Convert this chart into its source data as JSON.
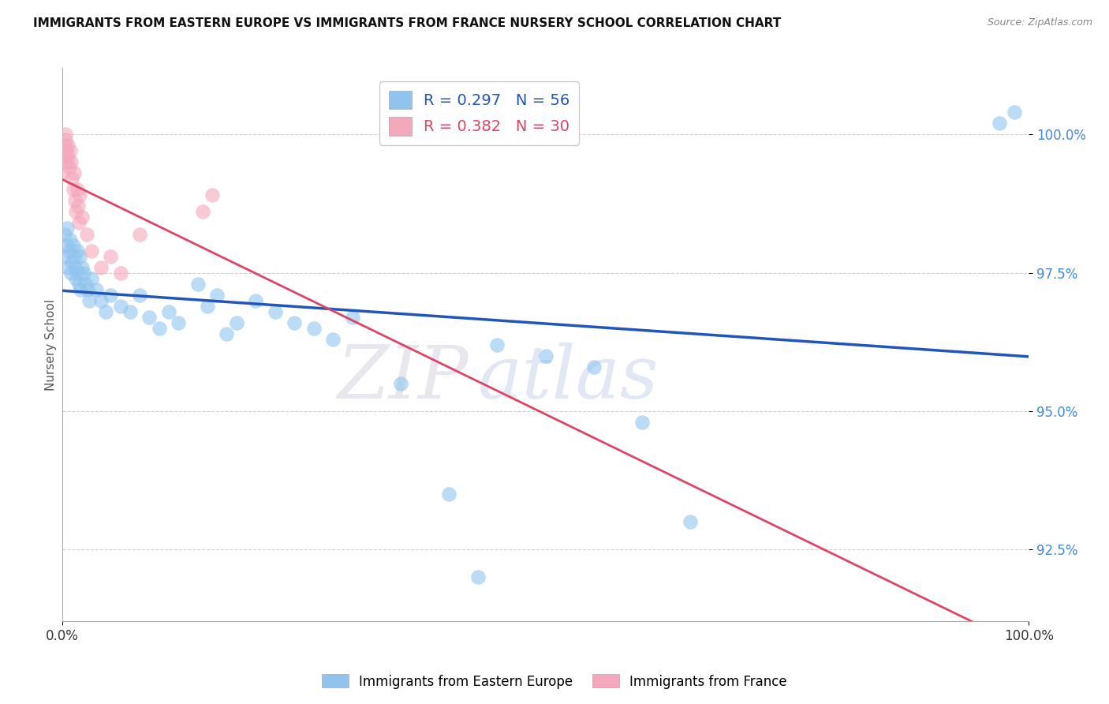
{
  "title": "IMMIGRANTS FROM EASTERN EUROPE VS IMMIGRANTS FROM FRANCE NURSERY SCHOOL CORRELATION CHART",
  "source_text": "Source: ZipAtlas.com",
  "ylabel": "Nursery School",
  "legend_label_blue": "Immigrants from Eastern Europe",
  "legend_label_pink": "Immigrants from France",
  "R_blue": 0.297,
  "N_blue": 56,
  "R_pink": 0.382,
  "N_pink": 30,
  "color_blue": "#90C4EE",
  "color_pink": "#F4A8BC",
  "color_line_blue": "#2255BB",
  "color_line_pink": "#DD4466",
  "xlim": [
    0,
    100
  ],
  "ylim": [
    91.2,
    101.2
  ],
  "yticks": [
    92.5,
    95.0,
    97.5,
    100.0
  ],
  "ytick_labels": [
    "92.5%",
    "95.0%",
    "97.5%",
    "100.0%"
  ],
  "xtick_labels": [
    "0.0%",
    "100.0%"
  ],
  "watermark_zip": "ZIP",
  "watermark_atlas": "atlas",
  "blue_x": [
    0.2,
    0.3,
    0.4,
    0.5,
    0.6,
    0.7,
    0.8,
    0.9,
    1.0,
    1.1,
    1.2,
    1.3,
    1.4,
    1.5,
    1.6,
    1.7,
    1.8,
    1.9,
    2.0,
    2.2,
    2.4,
    2.6,
    2.8,
    3.0,
    3.5,
    4.0,
    4.5,
    5.0,
    6.0,
    7.0,
    8.0,
    9.0,
    10.0,
    11.0,
    12.0,
    14.0,
    15.0,
    16.0,
    17.0,
    18.0,
    20.0,
    22.0,
    24.0,
    26.0,
    28.0,
    30.0,
    35.0,
    40.0,
    43.0,
    45.0,
    50.0,
    55.0,
    60.0,
    65.0,
    97.0,
    98.5
  ],
  "blue_y": [
    98.2,
    97.8,
    98.0,
    98.3,
    97.6,
    97.9,
    98.1,
    97.5,
    97.7,
    98.0,
    97.8,
    97.6,
    97.4,
    97.9,
    97.5,
    97.3,
    97.8,
    97.2,
    97.6,
    97.5,
    97.3,
    97.2,
    97.0,
    97.4,
    97.2,
    97.0,
    96.8,
    97.1,
    96.9,
    96.8,
    97.1,
    96.7,
    96.5,
    96.8,
    96.6,
    97.3,
    96.9,
    97.1,
    96.4,
    96.6,
    97.0,
    96.8,
    96.6,
    96.5,
    96.3,
    96.7,
    95.5,
    93.5,
    92.0,
    96.2,
    96.0,
    95.8,
    94.8,
    93.0,
    100.2,
    100.4
  ],
  "pink_x": [
    0.1,
    0.15,
    0.2,
    0.3,
    0.35,
    0.4,
    0.5,
    0.55,
    0.6,
    0.7,
    0.8,
    0.9,
    1.0,
    1.1,
    1.2,
    1.3,
    1.4,
    1.5,
    1.6,
    1.7,
    1.8,
    2.0,
    2.5,
    3.0,
    4.0,
    5.0,
    6.0,
    8.0,
    14.5,
    15.5
  ],
  "pink_y": [
    99.3,
    99.6,
    99.8,
    100.0,
    99.9,
    99.7,
    99.5,
    99.8,
    99.6,
    99.4,
    99.7,
    99.5,
    99.2,
    99.0,
    99.3,
    98.8,
    98.6,
    99.0,
    98.7,
    98.4,
    98.9,
    98.5,
    98.2,
    97.9,
    97.6,
    97.8,
    97.5,
    98.2,
    98.6,
    98.9
  ]
}
